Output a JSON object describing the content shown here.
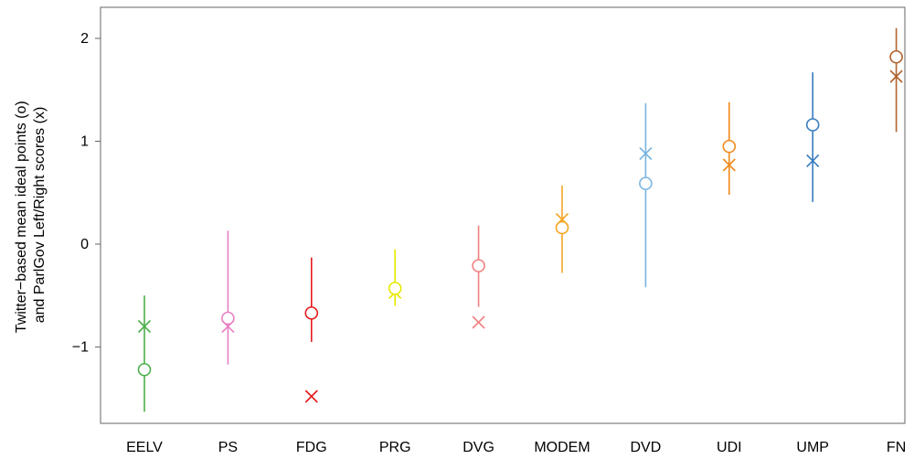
{
  "chart_data": {
    "type": "scatter",
    "title": "",
    "xlabel": "",
    "ylabel_lines": [
      "Twitter−based mean ideal points (o)",
      "and ParlGov Left/Right scores (x)"
    ],
    "ylim": [
      -1.75,
      2.3
    ],
    "yticks": [
      2,
      1,
      0,
      -1
    ],
    "ytick_labels": [
      "2",
      "1",
      "0",
      "−1"
    ],
    "grid": false,
    "categories": [
      "EELV",
      "PS",
      "FDG",
      "PRG",
      "DVG",
      "MODEM",
      "DVD",
      "UDI",
      "UMP",
      "FN"
    ],
    "colors": [
      "#4daf4a",
      "#e780c5",
      "#e41a1c",
      "#e8e800",
      "#f08080",
      "#f5a623",
      "#7ab5e0",
      "#f08a1c",
      "#3a7dbf",
      "#b0622c"
    ],
    "series": [
      {
        "marker": "circle",
        "values": [
          -1.22,
          -0.72,
          -0.67,
          -0.43,
          -0.21,
          0.16,
          0.59,
          0.95,
          1.16,
          1.82
        ]
      },
      {
        "marker": "x",
        "values": [
          -0.8,
          -0.8,
          -1.48,
          -0.47,
          -0.76,
          0.24,
          0.88,
          0.77,
          0.81,
          1.63
        ]
      }
    ],
    "intervals": [
      [
        -1.63,
        -0.5
      ],
      [
        -1.17,
        0.13
      ],
      [
        -0.95,
        -0.13
      ],
      [
        -0.6,
        -0.05
      ],
      [
        -0.61,
        0.18
      ],
      [
        -0.28,
        0.57
      ],
      [
        -0.42,
        1.37
      ],
      [
        0.48,
        1.38
      ],
      [
        0.41,
        1.67
      ],
      [
        1.09,
        2.1
      ]
    ]
  }
}
